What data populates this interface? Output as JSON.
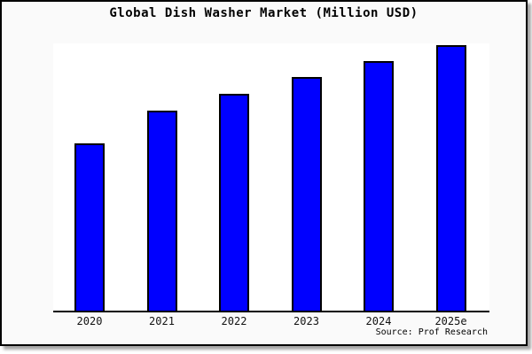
{
  "title": "Global Dish Washer Market (Million USD)",
  "source_note": "Source: Prof Research",
  "colors": {
    "bar_fill": "#0000ff",
    "bar_border": "#000000",
    "frame_background": "#fafafa",
    "plot_background": "#ffffff",
    "axis_line": "#000000",
    "shadow": "#a6a6a6"
  },
  "chart_data": {
    "type": "bar",
    "title": "Global Dish Washer Market (Million USD)",
    "categories": [
      "2020",
      "2021",
      "2022",
      "2023",
      "2024",
      "2025e"
    ],
    "values_pct_of_max": [
      63,
      75.3,
      81.7,
      88,
      94,
      100
    ],
    "xlabel": "",
    "ylabel": "",
    "y_axis": "hidden - no ticks, no gridlines, values shown only as relative bar heights (tallest bar = 100)",
    "grid": "off",
    "legend": "none",
    "bar_color": "#0000ff",
    "bar_border_color": "#000000",
    "annotation": "Source: Prof Research"
  }
}
